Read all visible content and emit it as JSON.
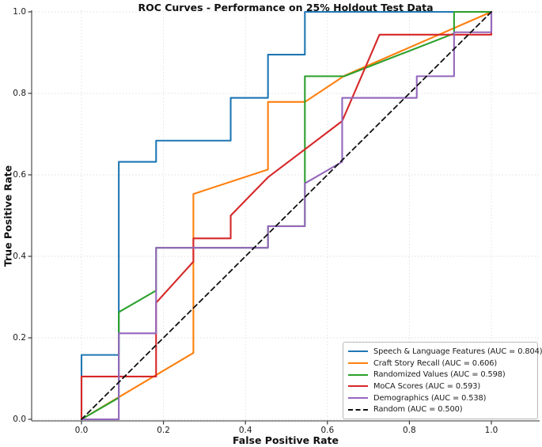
{
  "chart_data": {
    "type": "line",
    "title": "ROC Curves - Performance on 25% Holdout Test Data",
    "xlabel": "False Positive Rate",
    "ylabel": "True Positive Rate",
    "xlim": [
      0,
      1
    ],
    "ylim": [
      0,
      1
    ],
    "grid": "dotted",
    "legend_position": "lower right",
    "ticks": {
      "x": [
        "0.0",
        "0.2",
        "0.4",
        "0.6",
        "0.8",
        "1.0"
      ],
      "y": [
        "0.0",
        "0.2",
        "0.4",
        "0.6",
        "0.8",
        "1.0"
      ]
    },
    "series": [
      {
        "name": "speech-language-features",
        "label": "Speech & Language Features (AUC = 0.804)",
        "auc": 0.804,
        "color": "#1f77b4",
        "dash": false,
        "points": [
          [
            0,
            0
          ],
          [
            0,
            0.158
          ],
          [
            0.091,
            0.158
          ],
          [
            0.091,
            0.632
          ],
          [
            0.182,
            0.632
          ],
          [
            0.182,
            0.684
          ],
          [
            0.364,
            0.684
          ],
          [
            0.364,
            0.789
          ],
          [
            0.455,
            0.789
          ],
          [
            0.455,
            0.895
          ],
          [
            0.545,
            0.895
          ],
          [
            0.545,
            1
          ],
          [
            1,
            1
          ]
        ]
      },
      {
        "name": "craft-story-recall",
        "label": "Craft Story Recall (AUC = 0.606)",
        "auc": 0.606,
        "color": "#ff7f0e",
        "dash": false,
        "points": [
          [
            0,
            0
          ],
          [
            0.273,
            0.163
          ],
          [
            0.273,
            0.553
          ],
          [
            0.455,
            0.613
          ],
          [
            0.455,
            0.779
          ],
          [
            0.545,
            0.779
          ],
          [
            0.641,
            0.843
          ],
          [
            1,
            1
          ]
        ]
      },
      {
        "name": "randomized-values",
        "label": "Randomized Values (AUC = 0.598)",
        "auc": 0.598,
        "color": "#2ca02c",
        "dash": false,
        "points": [
          [
            0,
            0
          ],
          [
            0.091,
            0.053
          ],
          [
            0.091,
            0.263
          ],
          [
            0.182,
            0.316
          ],
          [
            0.182,
            0.421
          ],
          [
            0.455,
            0.421
          ],
          [
            0.455,
            0.474
          ],
          [
            0.545,
            0.474
          ],
          [
            0.545,
            0.842
          ],
          [
            0.641,
            0.842
          ],
          [
            0.909,
            0.947
          ],
          [
            0.909,
            1
          ],
          [
            1,
            1
          ]
        ]
      },
      {
        "name": "moca-scores",
        "label": "MoCA Scores (AUC = 0.593)",
        "auc": 0.593,
        "color": "#d62728",
        "dash": false,
        "points": [
          [
            0,
            0
          ],
          [
            0,
            0.105
          ],
          [
            0.182,
            0.105
          ],
          [
            0.182,
            0.286
          ],
          [
            0.273,
            0.387
          ],
          [
            0.273,
            0.444
          ],
          [
            0.364,
            0.444
          ],
          [
            0.364,
            0.5
          ],
          [
            0.455,
            0.594
          ],
          [
            0.636,
            0.732
          ],
          [
            0.727,
            0.944
          ],
          [
            1,
            0.944
          ],
          [
            1,
            1
          ]
        ]
      },
      {
        "name": "demographics",
        "label": "Demographics (AUC = 0.538)",
        "auc": 0.538,
        "color": "#9467bd",
        "dash": false,
        "points": [
          [
            0,
            0
          ],
          [
            0.091,
            0
          ],
          [
            0.091,
            0.211
          ],
          [
            0.182,
            0.211
          ],
          [
            0.182,
            0.421
          ],
          [
            0.455,
            0.421
          ],
          [
            0.455,
            0.474
          ],
          [
            0.545,
            0.474
          ],
          [
            0.545,
            0.579
          ],
          [
            0.636,
            0.632
          ],
          [
            0.636,
            0.789
          ],
          [
            0.818,
            0.789
          ],
          [
            0.818,
            0.842
          ],
          [
            0.909,
            0.842
          ],
          [
            0.909,
            0.95
          ],
          [
            1,
            0.95
          ],
          [
            1,
            1
          ]
        ]
      },
      {
        "name": "random-baseline",
        "label": "Random (AUC = 0.500)",
        "auc": 0.5,
        "color": "#111111",
        "dash": true,
        "points": [
          [
            0,
            0
          ],
          [
            1,
            1
          ]
        ]
      }
    ]
  }
}
